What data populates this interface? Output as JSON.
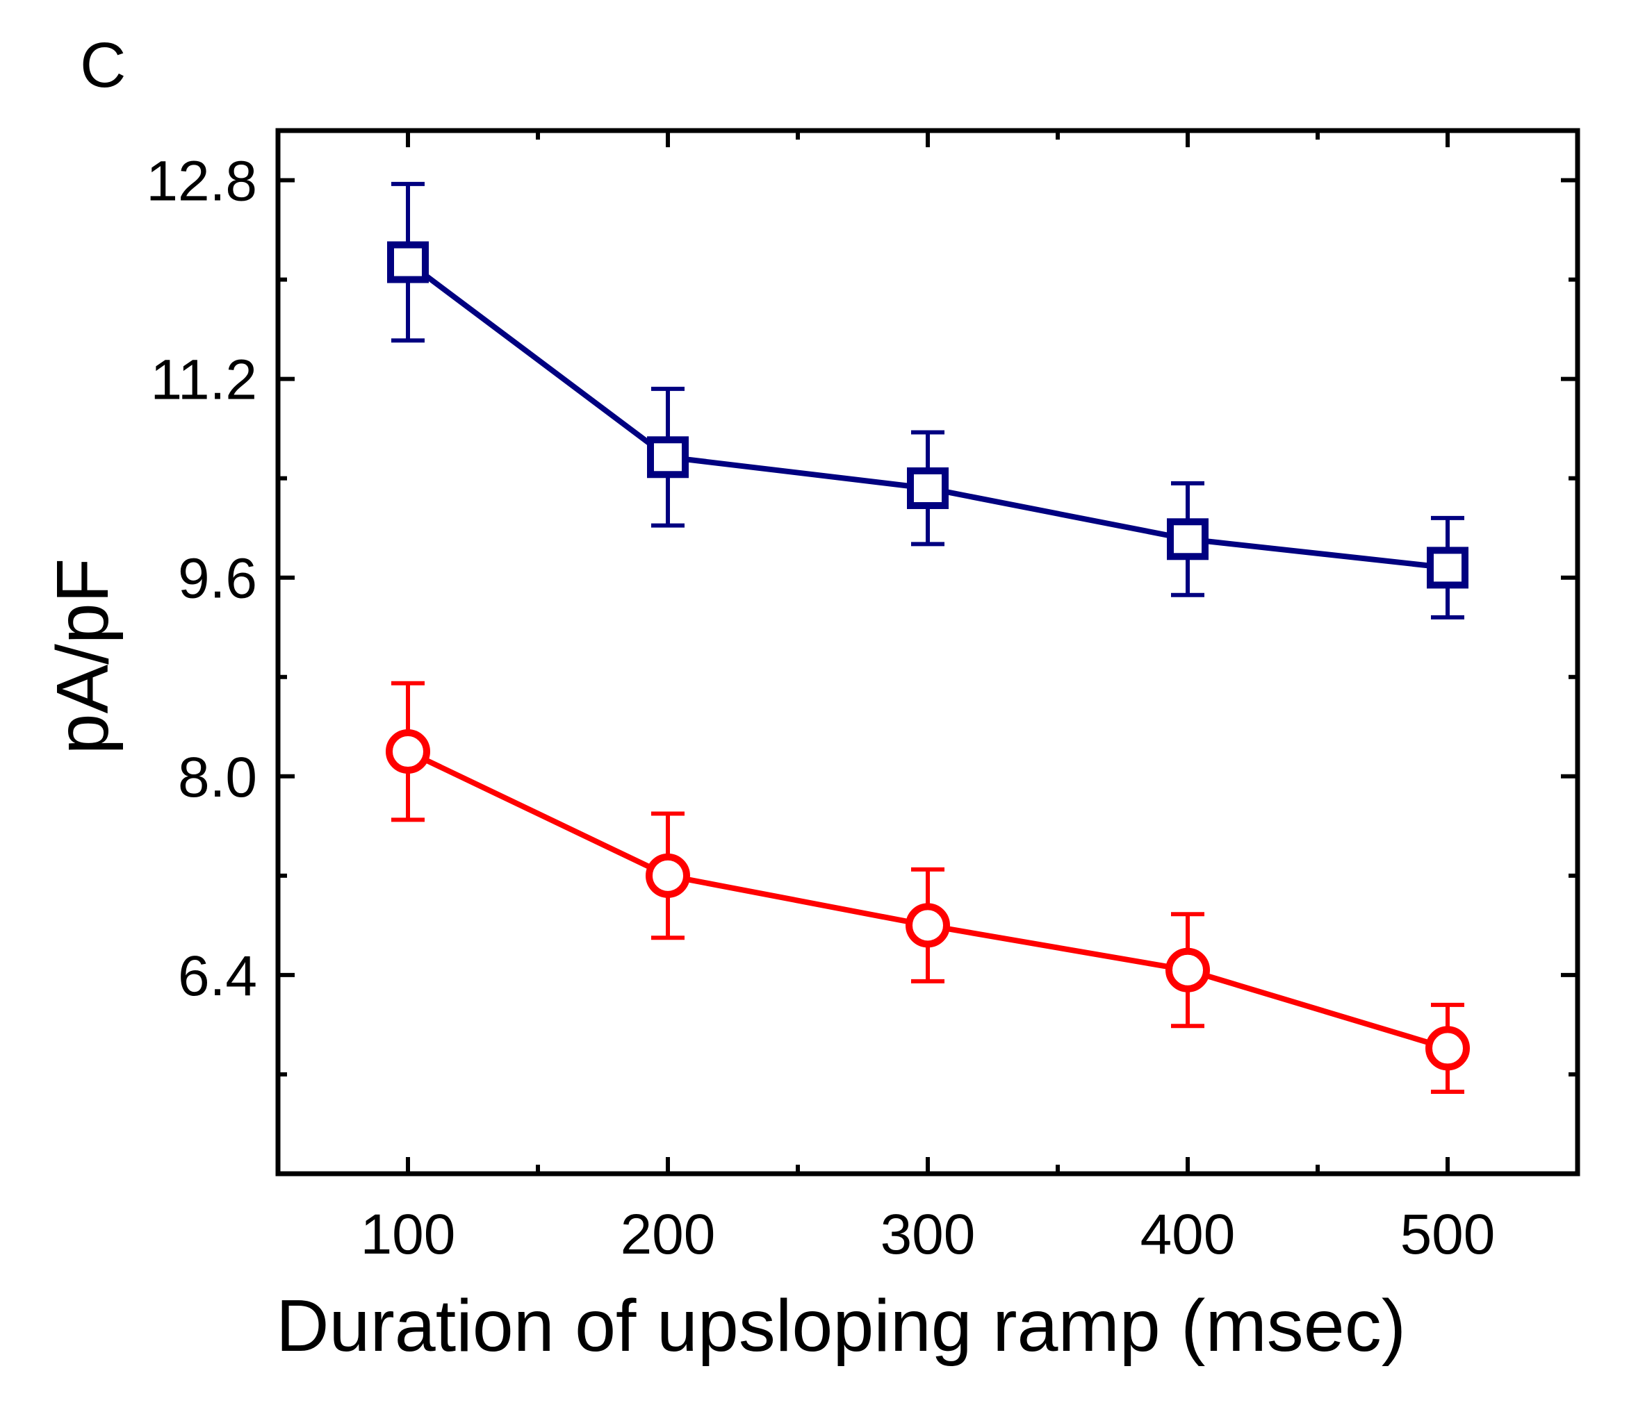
{
  "chart_data": {
    "type": "line",
    "panel_label": "C",
    "title": "",
    "xlabel": "Duration of upsloping ramp (msec)",
    "ylabel": "pA/pF",
    "xlim": [
      50,
      550
    ],
    "ylim": [
      4.8,
      13.2
    ],
    "x_ticks": [
      100,
      200,
      300,
      400,
      500
    ],
    "x_minor_ticks": [
      150,
      250,
      350,
      450
    ],
    "y_ticks": [
      6.4,
      8.0,
      9.6,
      11.2,
      12.8
    ],
    "y_tick_labels": [
      "6.4",
      "8.0",
      "9.6",
      "11.2",
      "12.8"
    ],
    "y_minor_ticks": [
      5.6,
      7.2,
      8.8,
      10.4,
      12.0
    ],
    "grid": false,
    "x": [
      100,
      200,
      300,
      400,
      500
    ],
    "series": [
      {
        "name": "squares",
        "marker": "square",
        "color": "#000080",
        "values": [
          12.14,
          10.57,
          10.32,
          9.91,
          9.68
        ],
        "errors": [
          0.63,
          0.55,
          0.45,
          0.45,
          0.4
        ]
      },
      {
        "name": "circles",
        "marker": "circle",
        "color": "#ff0000",
        "values": [
          8.2,
          7.2,
          6.8,
          6.44,
          5.81
        ],
        "errors": [
          0.55,
          0.5,
          0.45,
          0.45,
          0.35
        ]
      }
    ]
  }
}
